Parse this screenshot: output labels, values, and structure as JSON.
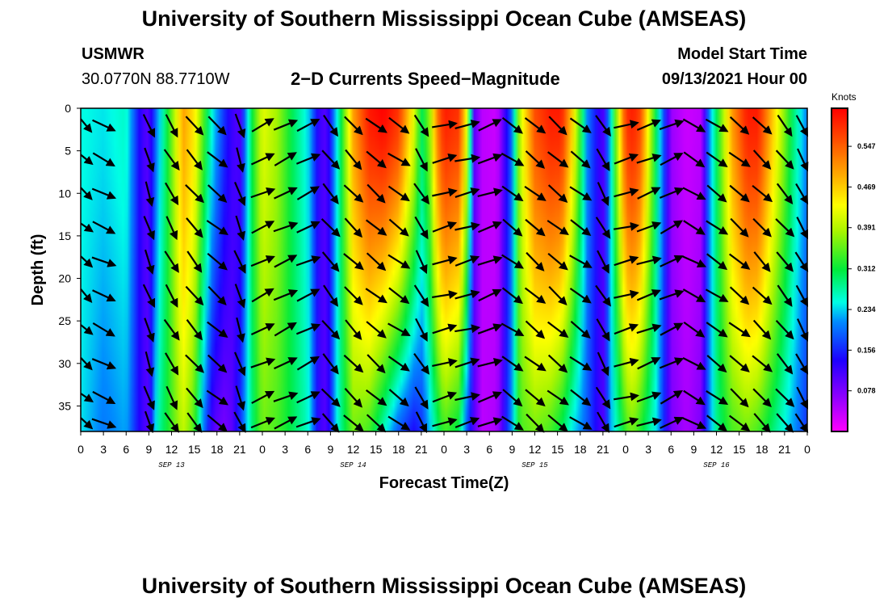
{
  "page": {
    "title_top": "University of Southern Mississippi Ocean Cube (AMSEAS)",
    "title_bottom": "University of Southern Mississippi Ocean Cube (AMSEAS)",
    "station": "USMWR",
    "location": "30.0770N  88.7710W",
    "plot_title": "2−D Currents Speed−Magnitude",
    "model_start_label": "Model Start Time",
    "model_start_value": "09/13/2021 Hour 00"
  },
  "chart_data": {
    "type": "heatmap",
    "title": "2-D Currents Speed-Magnitude",
    "xlabel": "Forecast Time(Z)",
    "ylabel": "Depth (ft)",
    "x_ticks": [
      "0",
      "3",
      "6",
      "9",
      "12",
      "15",
      "18",
      "21",
      "0",
      "3",
      "6",
      "9",
      "12",
      "15",
      "18",
      "21",
      "0",
      "3",
      "6",
      "9",
      "12",
      "15",
      "18",
      "21",
      "0",
      "3",
      "6",
      "9",
      "12",
      "15",
      "18",
      "21",
      "0"
    ],
    "date_labels": [
      {
        "label": "SEP 13",
        "hour": 12
      },
      {
        "label": "SEP 14",
        "hour": 36
      },
      {
        "label": "SEP 15",
        "hour": 60
      },
      {
        "label": "SEP 16",
        "hour": 84
      }
    ],
    "x_range_hours": [
      0,
      96
    ],
    "y_ticks": [
      0,
      5,
      10,
      15,
      20,
      25,
      30,
      35
    ],
    "y_range_ft": [
      0,
      38
    ],
    "colorbar": {
      "unit": "Knots",
      "ticks": [
        "0.547",
        "0.469",
        "0.391",
        "0.312",
        "0.234",
        "0.156",
        "0.078"
      ],
      "range": [
        0.0,
        0.62
      ]
    },
    "speed_surface_knots": {
      "hours": [
        0,
        3,
        6,
        8,
        9,
        10,
        12,
        13.5,
        15,
        16,
        17.5,
        19,
        20,
        21,
        22.5,
        24,
        26,
        28,
        30,
        31.5,
        32.5,
        34,
        36,
        38,
        40,
        42,
        44,
        45,
        46,
        47,
        48,
        50,
        51,
        52,
        53,
        55,
        57,
        58,
        60,
        62,
        63.5,
        65,
        67,
        69,
        70,
        71.5,
        72,
        73,
        74,
        76,
        78,
        80,
        82,
        83,
        84,
        86,
        88,
        89.5,
        91,
        94,
        96
      ],
      "surface": [
        0.25,
        0.24,
        0.26,
        0.12,
        0.1,
        0.2,
        0.36,
        0.5,
        0.45,
        0.36,
        0.24,
        0.16,
        0.12,
        0.1,
        0.3,
        0.42,
        0.38,
        0.3,
        0.24,
        0.12,
        0.1,
        0.26,
        0.5,
        0.6,
        0.62,
        0.58,
        0.42,
        0.3,
        0.36,
        0.52,
        0.6,
        0.58,
        0.42,
        0.1,
        0.04,
        0.03,
        0.2,
        0.4,
        0.56,
        0.6,
        0.6,
        0.46,
        0.2,
        0.1,
        0.24,
        0.5,
        0.58,
        0.6,
        0.56,
        0.3,
        0.06,
        0.03,
        0.04,
        0.2,
        0.3,
        0.5,
        0.6,
        0.6,
        0.5,
        0.3,
        0.2
      ],
      "bottom": [
        0.24,
        0.2,
        0.22,
        0.12,
        0.1,
        0.26,
        0.34,
        0.4,
        0.34,
        0.22,
        0.1,
        0.08,
        0.1,
        0.16,
        0.28,
        0.36,
        0.34,
        0.3,
        0.26,
        0.12,
        0.1,
        0.26,
        0.36,
        0.34,
        0.26,
        0.18,
        0.14,
        0.16,
        0.22,
        0.28,
        0.34,
        0.3,
        0.18,
        0.1,
        0.04,
        0.05,
        0.22,
        0.34,
        0.36,
        0.34,
        0.3,
        0.24,
        0.18,
        0.1,
        0.22,
        0.3,
        0.34,
        0.36,
        0.32,
        0.24,
        0.08,
        0.05,
        0.08,
        0.2,
        0.28,
        0.34,
        0.36,
        0.34,
        0.3,
        0.22,
        0.16
      ]
    },
    "arrow_columns": [
      {
        "hour": 0,
        "angle_deg": -25
      },
      {
        "hour": 3,
        "angle_deg": -25
      },
      {
        "hour": 9,
        "angle_deg": -70
      },
      {
        "hour": 12,
        "angle_deg": -60
      },
      {
        "hour": 15,
        "angle_deg": -50
      },
      {
        "hour": 18,
        "angle_deg": -40
      },
      {
        "hour": 21,
        "angle_deg": -70
      },
      {
        "hour": 24,
        "angle_deg": 25
      },
      {
        "hour": 27,
        "angle_deg": 25
      },
      {
        "hour": 30,
        "angle_deg": 25
      },
      {
        "hour": 33,
        "angle_deg": -50
      },
      {
        "hour": 36,
        "angle_deg": -45
      },
      {
        "hour": 39,
        "angle_deg": -40
      },
      {
        "hour": 42,
        "angle_deg": -35
      },
      {
        "hour": 45,
        "angle_deg": -60
      },
      {
        "hour": 48,
        "angle_deg": 15
      },
      {
        "hour": 51,
        "angle_deg": 15
      },
      {
        "hour": 54,
        "angle_deg": 20
      },
      {
        "hour": 57,
        "angle_deg": -35
      },
      {
        "hour": 60,
        "angle_deg": -40
      },
      {
        "hour": 63,
        "angle_deg": -40
      },
      {
        "hour": 66,
        "angle_deg": -35
      },
      {
        "hour": 69,
        "angle_deg": -60
      },
      {
        "hour": 72,
        "angle_deg": 15
      },
      {
        "hour": 75,
        "angle_deg": 20
      },
      {
        "hour": 78,
        "angle_deg": 25
      },
      {
        "hour": 81,
        "angle_deg": -30
      },
      {
        "hour": 84,
        "angle_deg": -35
      },
      {
        "hour": 87,
        "angle_deg": -40
      },
      {
        "hour": 90,
        "angle_deg": -45
      },
      {
        "hour": 93,
        "angle_deg": -50
      },
      {
        "hour": 95.5,
        "angle_deg": -55
      }
    ],
    "arrow_depths_ft": [
      2,
      6,
      10,
      14,
      18,
      22,
      26,
      30,
      34,
      37
    ]
  }
}
